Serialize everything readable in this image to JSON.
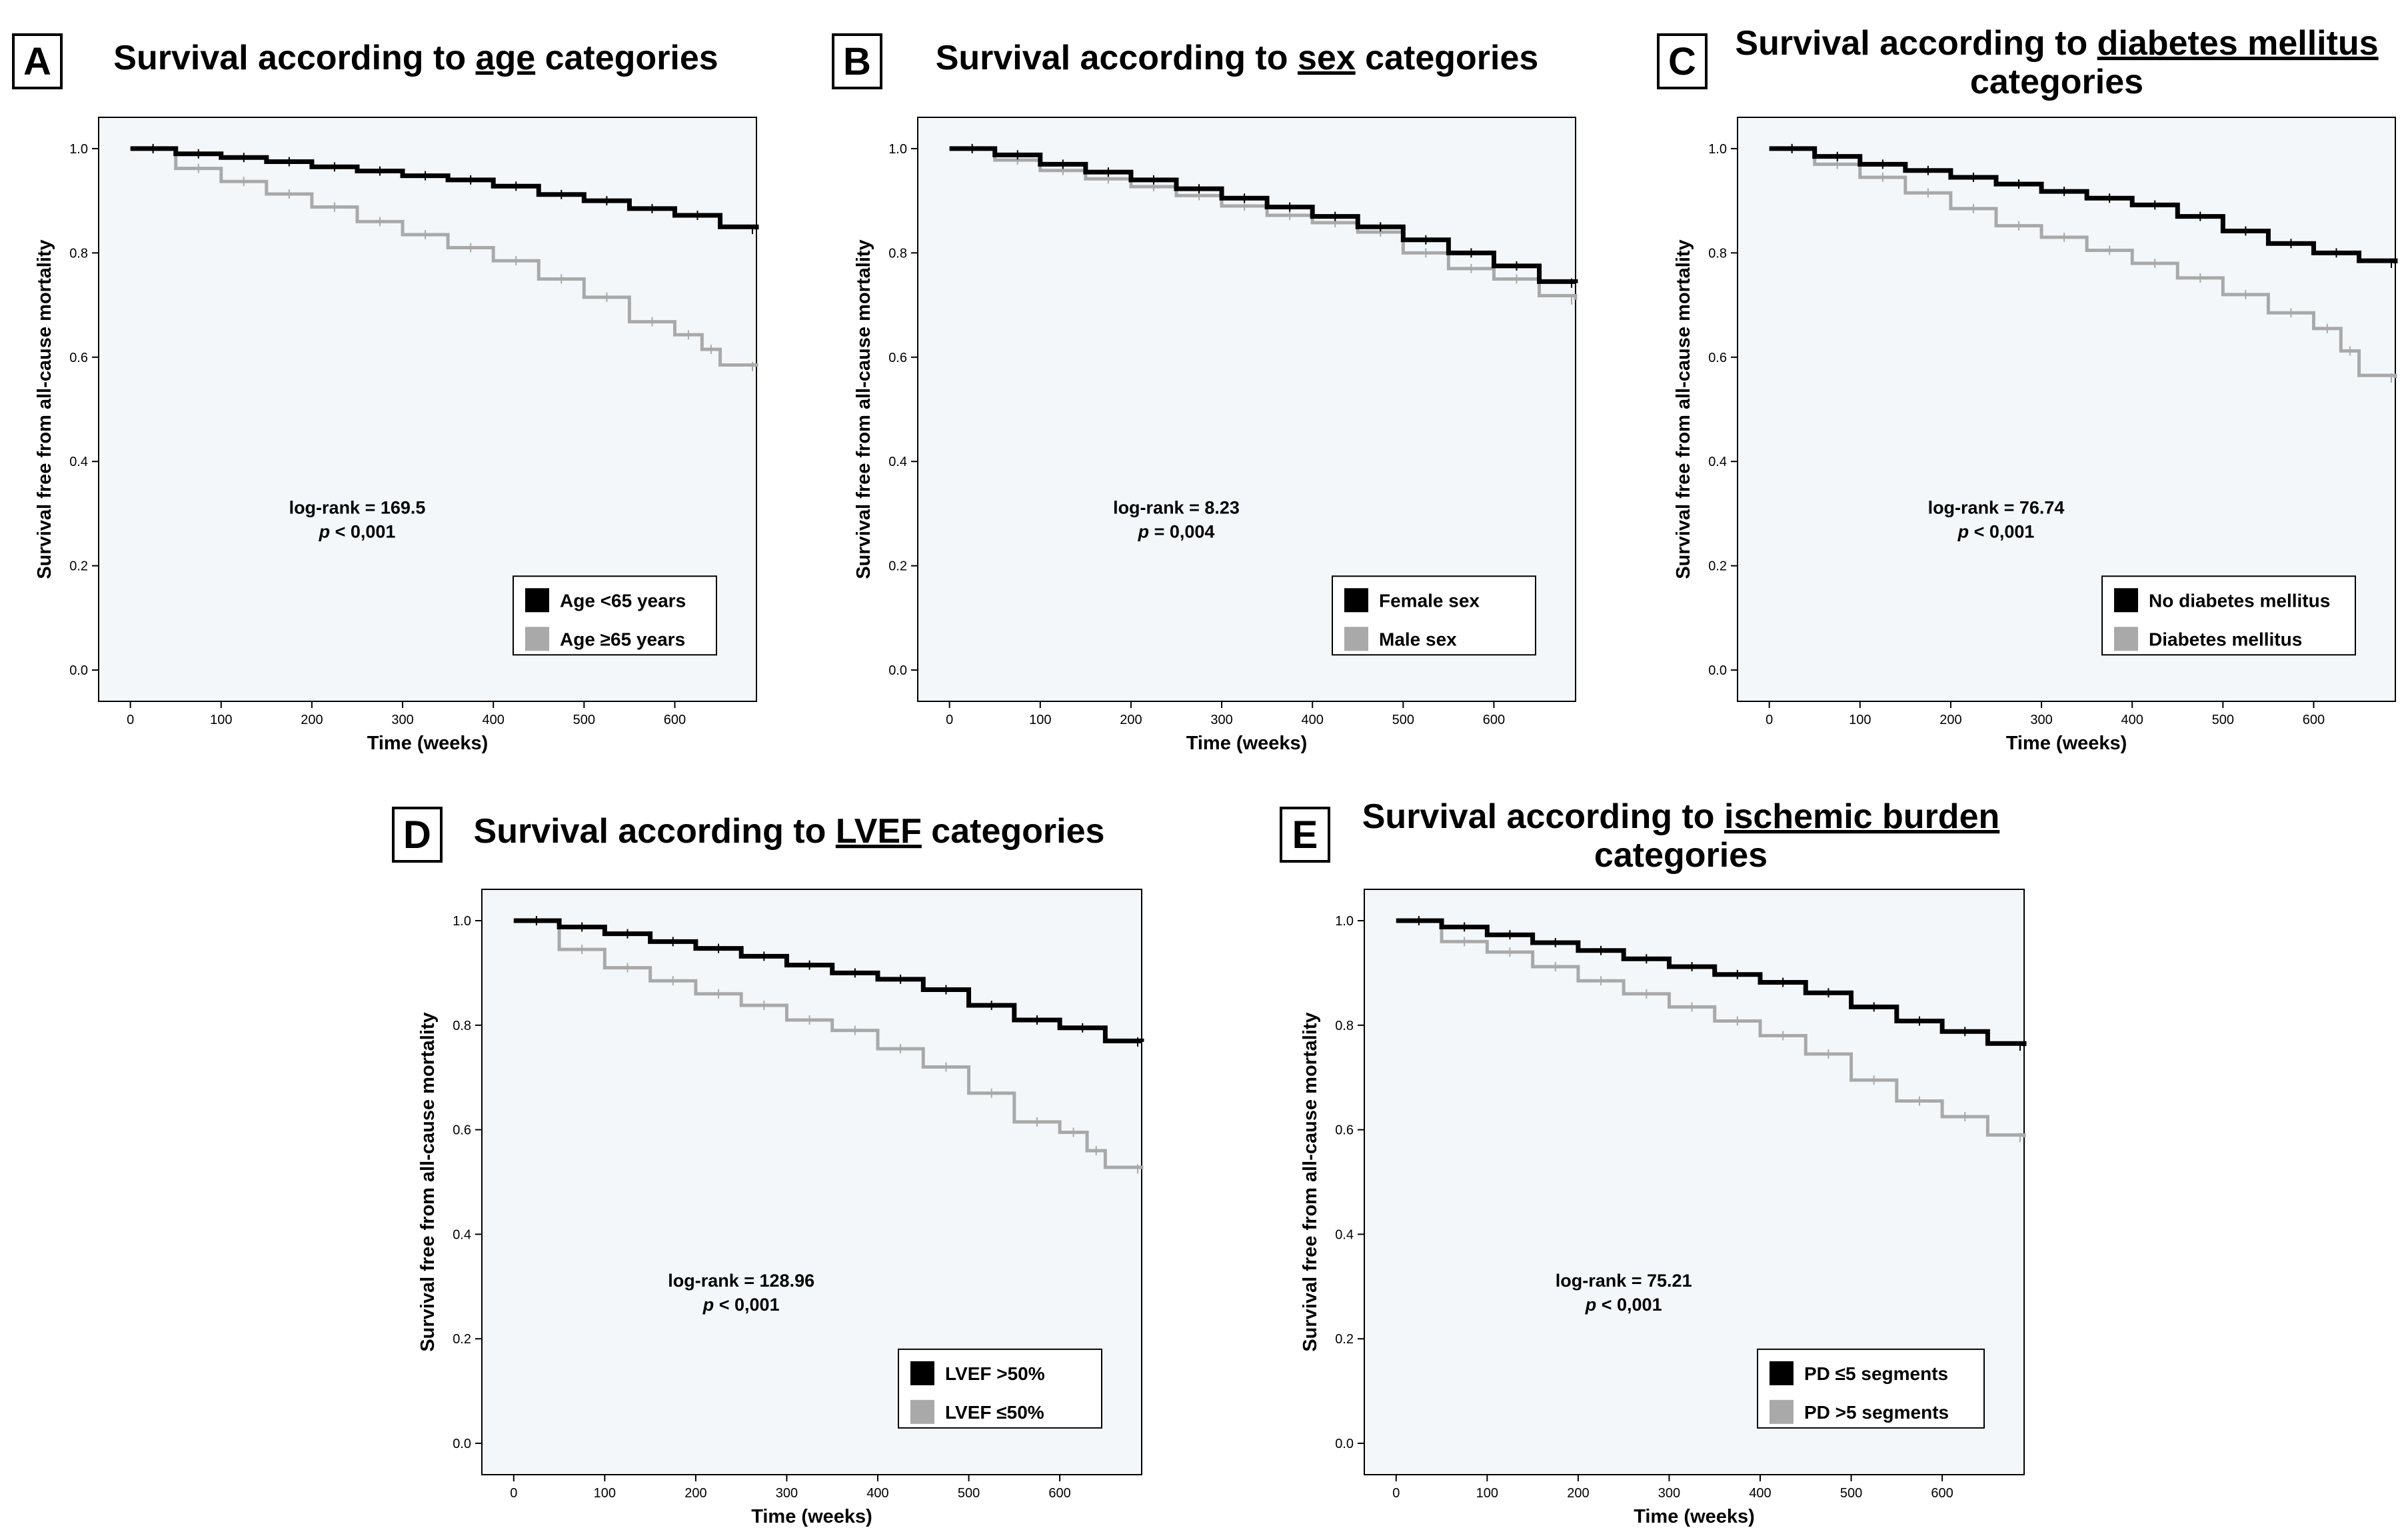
{
  "colors": {
    "plot_bg": "#f3f7fa",
    "series_1": "#000000",
    "series_2": "#a9a9a9",
    "frame": "#000000"
  },
  "chart_data": [
    {
      "type": "line",
      "subtype": "kaplan-meier",
      "letter": "A",
      "title_pre": "Survival according to ",
      "title_keyword": "age",
      "title_post": " categories",
      "title_line2": "",
      "xlabel": "Time (weeks)",
      "ylabel": "Survival free from all-cause mortality",
      "xlim": [
        -35,
        690
      ],
      "ylim": [
        -0.06,
        1.06
      ],
      "xticks": [
        0,
        100,
        200,
        300,
        400,
        500,
        600
      ],
      "yticks": [
        "0.0",
        "0.2",
        "0.4",
        "0.6",
        "0.8",
        "1.0"
      ],
      "stat_line1": "log-rank = 169.5",
      "stat_p_italic": "p",
      "stat_line2_rest": " < 0,001",
      "series": [
        {
          "name": "Age <65 years",
          "x": [
            0,
            50,
            100,
            150,
            200,
            250,
            300,
            350,
            400,
            450,
            500,
            550,
            600,
            650,
            690
          ],
          "y": [
            1.0,
            0.99,
            0.983,
            0.975,
            0.965,
            0.957,
            0.948,
            0.94,
            0.928,
            0.912,
            0.9,
            0.885,
            0.872,
            0.85,
            0.845
          ]
        },
        {
          "name": "Age ≥65 years",
          "x": [
            0,
            50,
            100,
            150,
            200,
            250,
            300,
            350,
            400,
            450,
            500,
            550,
            600,
            630,
            650,
            690
          ],
          "y": [
            1.0,
            0.962,
            0.937,
            0.913,
            0.888,
            0.86,
            0.835,
            0.81,
            0.785,
            0.75,
            0.715,
            0.668,
            0.643,
            0.615,
            0.585,
            0.582
          ]
        }
      ]
    },
    {
      "type": "line",
      "subtype": "kaplan-meier",
      "letter": "B",
      "title_pre": "Survival according to ",
      "title_keyword": "sex",
      "title_post": " categories",
      "title_line2": "",
      "xlabel": "Time (weeks)",
      "ylabel": "Survival free from all-cause mortality",
      "xlim": [
        -35,
        690
      ],
      "ylim": [
        -0.06,
        1.06
      ],
      "xticks": [
        0,
        100,
        200,
        300,
        400,
        500,
        600
      ],
      "yticks": [
        "0.0",
        "0.2",
        "0.4",
        "0.6",
        "0.8",
        "1.0"
      ],
      "stat_line1": "log-rank = 8.23",
      "stat_p_italic": "p",
      "stat_line2_rest": " = 0,004",
      "series": [
        {
          "name": "Female sex",
          "x": [
            0,
            50,
            100,
            150,
            200,
            250,
            300,
            350,
            400,
            450,
            500,
            550,
            600,
            650,
            690
          ],
          "y": [
            1.0,
            0.988,
            0.97,
            0.955,
            0.94,
            0.923,
            0.905,
            0.888,
            0.87,
            0.85,
            0.825,
            0.8,
            0.775,
            0.745,
            0.742
          ]
        },
        {
          "name": "Male sex",
          "x": [
            0,
            50,
            100,
            150,
            200,
            250,
            300,
            350,
            400,
            450,
            500,
            550,
            600,
            650,
            690
          ],
          "y": [
            1.0,
            0.978,
            0.958,
            0.942,
            0.927,
            0.91,
            0.89,
            0.872,
            0.858,
            0.84,
            0.8,
            0.77,
            0.75,
            0.718,
            0.71
          ]
        }
      ]
    },
    {
      "type": "line",
      "subtype": "kaplan-meier",
      "letter": "C",
      "title_pre": "Survival according to ",
      "title_keyword": "diabetes mellitus",
      "title_post": "",
      "title_line2": "categories",
      "xlabel": "Time (weeks)",
      "ylabel": "Survival free from all-cause mortality",
      "xlim": [
        -35,
        690
      ],
      "ylim": [
        -0.06,
        1.06
      ],
      "xticks": [
        0,
        100,
        200,
        300,
        400,
        500,
        600
      ],
      "yticks": [
        "0.0",
        "0.2",
        "0.4",
        "0.6",
        "0.8",
        "1.0"
      ],
      "stat_line1": "log-rank = 76.74",
      "stat_p_italic": "p",
      "stat_line2_rest": " < 0,001",
      "series": [
        {
          "name": "No diabetes mellitus",
          "x": [
            0,
            50,
            100,
            150,
            200,
            250,
            300,
            350,
            400,
            450,
            500,
            550,
            600,
            650,
            690
          ],
          "y": [
            1.0,
            0.985,
            0.97,
            0.958,
            0.945,
            0.932,
            0.918,
            0.905,
            0.892,
            0.87,
            0.842,
            0.818,
            0.8,
            0.785,
            0.78
          ]
        },
        {
          "name": "Diabetes mellitus",
          "x": [
            0,
            50,
            100,
            150,
            200,
            250,
            300,
            350,
            400,
            450,
            500,
            550,
            600,
            630,
            650,
            690
          ],
          "y": [
            1.0,
            0.97,
            0.945,
            0.915,
            0.885,
            0.852,
            0.83,
            0.805,
            0.78,
            0.752,
            0.72,
            0.685,
            0.655,
            0.612,
            0.565,
            0.56
          ]
        }
      ]
    },
    {
      "type": "line",
      "subtype": "kaplan-meier",
      "letter": "D",
      "title_pre": "Survival according to ",
      "title_keyword": "LVEF",
      "title_post": " categories",
      "title_line2": "",
      "xlabel": "Time (weeks)",
      "ylabel": "Survival free from all-cause mortality",
      "xlim": [
        -35,
        690
      ],
      "ylim": [
        -0.06,
        1.06
      ],
      "xticks": [
        0,
        100,
        200,
        300,
        400,
        500,
        600
      ],
      "yticks": [
        "0.0",
        "0.2",
        "0.4",
        "0.6",
        "0.8",
        "1.0"
      ],
      "stat_line1": "log-rank = 128.96",
      "stat_p_italic": "p",
      "stat_line2_rest": " < 0,001",
      "series": [
        {
          "name": "LVEF >50%",
          "x": [
            0,
            50,
            100,
            150,
            200,
            250,
            300,
            350,
            400,
            450,
            500,
            550,
            600,
            650,
            690
          ],
          "y": [
            1.0,
            0.988,
            0.975,
            0.96,
            0.947,
            0.932,
            0.915,
            0.9,
            0.888,
            0.868,
            0.838,
            0.81,
            0.795,
            0.77,
            0.768
          ]
        },
        {
          "name": "LVEF ≤50%",
          "x": [
            0,
            50,
            100,
            150,
            200,
            250,
            300,
            350,
            400,
            450,
            500,
            550,
            600,
            630,
            650,
            690
          ],
          "y": [
            1.0,
            0.945,
            0.91,
            0.885,
            0.86,
            0.838,
            0.81,
            0.79,
            0.755,
            0.72,
            0.67,
            0.615,
            0.595,
            0.56,
            0.528,
            0.525
          ]
        }
      ]
    },
    {
      "type": "line",
      "subtype": "kaplan-meier",
      "letter": "E",
      "title_pre": "Survival according to ",
      "title_keyword": "ischemic burden",
      "title_post": "",
      "title_line2": "categories",
      "xlabel": "Time (weeks)",
      "ylabel": "Survival free from all-cause mortality",
      "xlim": [
        -35,
        690
      ],
      "ylim": [
        -0.06,
        1.06
      ],
      "xticks": [
        0,
        100,
        200,
        300,
        400,
        500,
        600
      ],
      "yticks": [
        "0.0",
        "0.2",
        "0.4",
        "0.6",
        "0.8",
        "1.0"
      ],
      "stat_line1": "log-rank = 75.21",
      "stat_p_italic": "p",
      "stat_line2_rest": " < 0,001",
      "series": [
        {
          "name": "PD ≤5 segments",
          "x": [
            0,
            50,
            100,
            150,
            200,
            250,
            300,
            350,
            400,
            450,
            500,
            550,
            600,
            650,
            690
          ],
          "y": [
            1.0,
            0.988,
            0.973,
            0.958,
            0.943,
            0.927,
            0.912,
            0.897,
            0.882,
            0.862,
            0.835,
            0.808,
            0.788,
            0.765,
            0.76
          ]
        },
        {
          "name": "PD >5 segments",
          "x": [
            0,
            50,
            100,
            150,
            200,
            250,
            300,
            350,
            400,
            450,
            500,
            550,
            600,
            650,
            690
          ],
          "y": [
            1.0,
            0.96,
            0.94,
            0.912,
            0.885,
            0.86,
            0.835,
            0.808,
            0.78,
            0.745,
            0.695,
            0.655,
            0.625,
            0.59,
            0.585
          ]
        }
      ]
    }
  ]
}
